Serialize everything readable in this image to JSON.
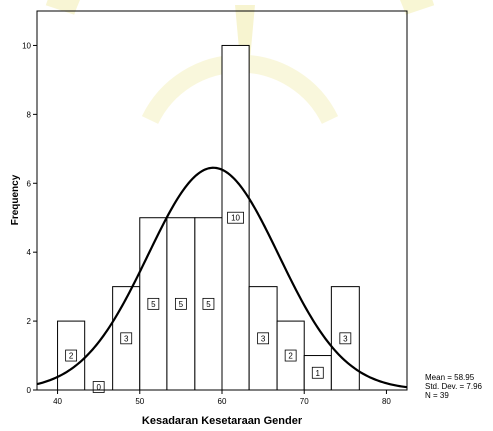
{
  "chart_data": {
    "type": "bar",
    "subtype": "histogram-with-normal-curve",
    "xlabel": "Kesadaran Kesetaraan Gender",
    "ylabel": "Frequency",
    "xlim": [
      37.5,
      82.5
    ],
    "ylim": [
      0,
      11
    ],
    "xticks": [
      40,
      50,
      60,
      70,
      80
    ],
    "yticks": [
      0,
      2,
      4,
      6,
      8,
      10
    ],
    "bins": [
      {
        "start": 40.0,
        "end": 43.3,
        "count": 2
      },
      {
        "start": 43.3,
        "end": 46.7,
        "count": 0
      },
      {
        "start": 46.7,
        "end": 50.0,
        "count": 3
      },
      {
        "start": 50.0,
        "end": 53.3,
        "count": 5
      },
      {
        "start": 53.3,
        "end": 56.7,
        "count": 5
      },
      {
        "start": 56.7,
        "end": 60.0,
        "count": 5
      },
      {
        "start": 60.0,
        "end": 63.3,
        "count": 10
      },
      {
        "start": 63.3,
        "end": 66.7,
        "count": 3
      },
      {
        "start": 66.7,
        "end": 70.0,
        "count": 2
      },
      {
        "start": 70.0,
        "end": 73.3,
        "count": 1
      },
      {
        "start": 73.3,
        "end": 76.7,
        "count": 3
      }
    ],
    "normal_curve": {
      "mean": 58.95,
      "sd": 7.96,
      "n": 39
    },
    "stats_text": [
      "Mean = 58.95",
      "Std. Dev. = 7.96",
      "N = 39"
    ],
    "grid": false,
    "colors": {
      "bar_fill": "#ffffff",
      "stroke": "#000000",
      "curve": "#000000"
    }
  }
}
